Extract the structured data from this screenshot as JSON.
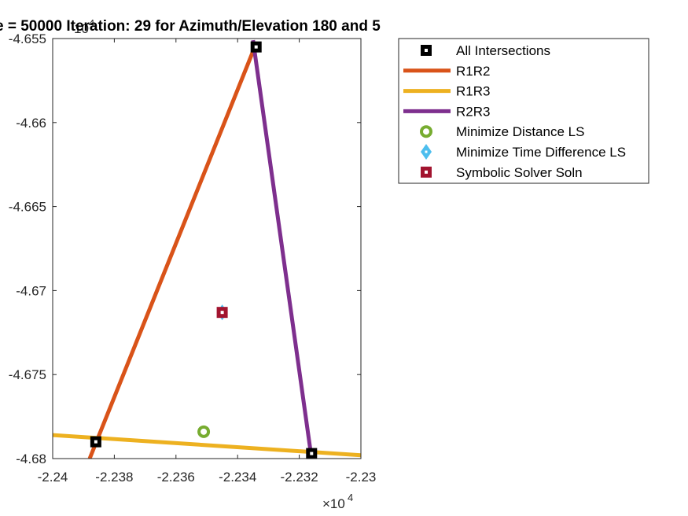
{
  "chart_data": {
    "type": "line",
    "title": "e = 50000  Iteration: 29 for Azimuth/Elevation 180 and 5",
    "xlabel": "",
    "ylabel": "",
    "xlim": [
      -22400,
      -22300
    ],
    "ylim": [
      -46800,
      -46550
    ],
    "x_exponent_label": "×10",
    "x_exponent_power": "4",
    "y_exponent_label": "10",
    "y_exponent_power": "4",
    "x_ticks": [
      {
        "value": -22400,
        "label": "-2.24"
      },
      {
        "value": -22380,
        "label": "-2.238"
      },
      {
        "value": -22360,
        "label": "-2.236"
      },
      {
        "value": -22340,
        "label": "-2.234"
      },
      {
        "value": -22320,
        "label": "-2.232"
      },
      {
        "value": -22300,
        "label": "-2.23"
      }
    ],
    "y_ticks": [
      {
        "value": -46550,
        "label": "-4.655"
      },
      {
        "value": -46600,
        "label": "-4.66"
      },
      {
        "value": -46650,
        "label": "-4.665"
      },
      {
        "value": -46700,
        "label": "-4.67"
      },
      {
        "value": -46750,
        "label": "-4.675"
      },
      {
        "value": -46800,
        "label": "-4.68"
      }
    ],
    "grid": false,
    "legend_position": "top-right outside",
    "series": [
      {
        "name": "All Intersections",
        "kind": "marker",
        "marker": "square",
        "color": "#000000",
        "points": [
          [
            -22334,
            -46555
          ],
          [
            -22386,
            -46790
          ],
          [
            -22316,
            -46797
          ]
        ]
      },
      {
        "name": "R1R2",
        "kind": "line",
        "color": "#D95319",
        "points": [
          [
            -22388,
            -46800
          ],
          [
            -22334,
            -46553
          ]
        ]
      },
      {
        "name": "R1R3",
        "kind": "line",
        "color": "#EDB120",
        "points": [
          [
            -22400,
            -46786
          ],
          [
            -22300,
            -46798
          ]
        ]
      },
      {
        "name": "R2R3",
        "kind": "line",
        "color": "#7E2F8E",
        "points": [
          [
            -22335,
            -46551
          ],
          [
            -22316,
            -46800
          ]
        ]
      },
      {
        "name": "Minimize Distance LS",
        "kind": "marker",
        "marker": "circle",
        "color": "#77AC30",
        "points": [
          [
            -22351,
            -46784
          ]
        ]
      },
      {
        "name": "Minimize Time Difference LS",
        "kind": "marker",
        "marker": "diamond",
        "color": "#4DBEEE",
        "points": [
          [
            -22345,
            -46713
          ]
        ]
      },
      {
        "name": "Symbolic Solver Soln",
        "kind": "marker",
        "marker": "square",
        "color": "#A2142F",
        "points": [
          [
            -22345,
            -46713
          ]
        ]
      }
    ]
  }
}
